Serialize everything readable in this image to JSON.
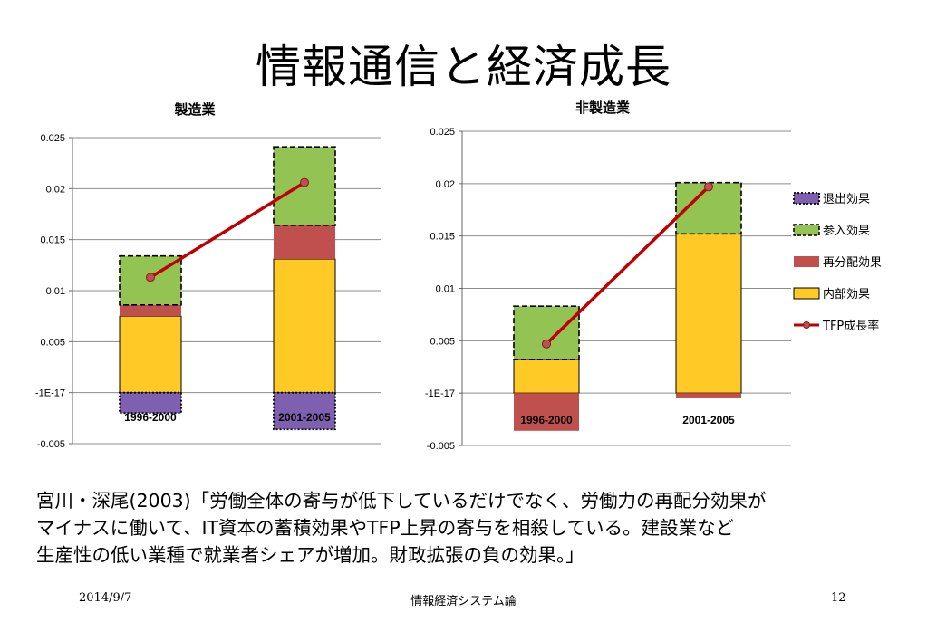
{
  "slide": {
    "title": "情報通信と経済成長",
    "body_lines": [
      "宮川・深尾(2003)「労働全体の寄与が低下しているだけでなく、労働力の再配分効果が",
      "マイナスに働いて、IT資本の蓄積効果やTFP上昇の寄与を相殺している。建設業など",
      "生産性の低い業種で就業者シェアが増加。財政拡張の負の効果。」"
    ],
    "footer": {
      "date": "2014/9/7",
      "center": "情報経済システム論",
      "page": "12"
    }
  },
  "legend": [
    {
      "label": "退出効果",
      "color": "#7f5fb0",
      "border": "dotted"
    },
    {
      "label": "参入効果",
      "color": "#92c353",
      "border": "dashed"
    },
    {
      "label": "再分配効果",
      "color": "#c0504d",
      "border": "none"
    },
    {
      "label": "内部効果",
      "color": "#ffc926",
      "border": "solid"
    },
    {
      "label": "TFP成長率",
      "color": "#c00000",
      "border": "line"
    }
  ],
  "chart_data": [
    {
      "type": "bar",
      "stacked": true,
      "title": "製造業",
      "categories": [
        "1996-2000",
        "2001-2005"
      ],
      "yticks": [
        "0.025",
        "0.02",
        "0.015",
        "0.01",
        "0.005",
        "-1E-17",
        "-0.005"
      ],
      "ylim": [
        -0.005,
        0.025
      ],
      "series": [
        {
          "name": "内部効果",
          "values": [
            0.0075,
            0.0131
          ]
        },
        {
          "name": "再分配効果",
          "values": [
            0.0011,
            0.0033
          ]
        },
        {
          "name": "参入効果",
          "values": [
            0.0048,
            0.0077
          ]
        },
        {
          "name": "退出効果",
          "values": [
            -0.002,
            -0.0036
          ]
        }
      ],
      "line": {
        "name": "TFP成長率",
        "values": [
          0.0113,
          0.0206
        ]
      },
      "grid": true
    },
    {
      "type": "bar",
      "stacked": true,
      "title": "非製造業",
      "categories": [
        "1996-2000",
        "2001-2005"
      ],
      "yticks": [
        "0.025",
        "0.02",
        "0.015",
        "0.01",
        "0.005",
        "-1E-17",
        "-0.005"
      ],
      "ylim": [
        -0.005,
        0.025
      ],
      "series": [
        {
          "name": "内部効果",
          "values": [
            0.0032,
            0.0152
          ]
        },
        {
          "name": "再分配効果",
          "values": [
            -0.0036,
            -0.0005
          ]
        },
        {
          "name": "参入効果",
          "values": [
            0.0051,
            0.0049
          ]
        },
        {
          "name": "退出効果",
          "values": [
            0.0,
            0.0
          ]
        }
      ],
      "line": {
        "name": "TFP成長率",
        "values": [
          0.0047,
          0.0197
        ]
      },
      "grid": true
    }
  ]
}
